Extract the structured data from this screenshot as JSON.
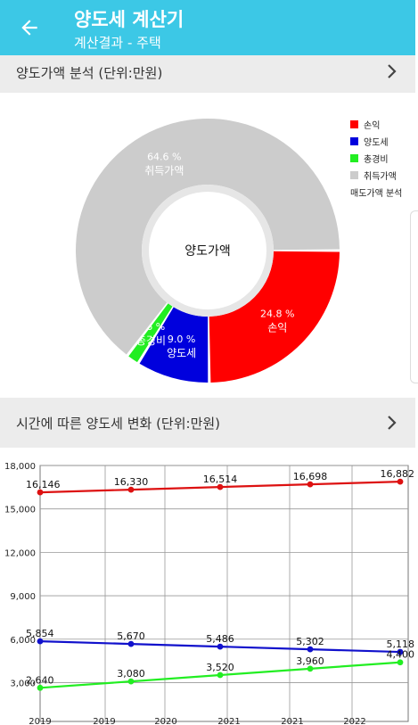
{
  "header": {
    "title": "양도세 계산기",
    "subtitle": "계산결과 - 주택",
    "back_icon": "arrow-left-icon",
    "color": "#3cc8e6"
  },
  "pie_section": {
    "title": "양도가액 분석 (단위:만원)",
    "center_label": "양도가액",
    "description": "매도가액 분석"
  },
  "line_section": {
    "title": "시간에 따른 양도세 변화 (단위:만원)"
  },
  "chart_data": [
    {
      "type": "pie",
      "title": "",
      "center_label": "양도가액",
      "slices": [
        {
          "name": "손익",
          "value": 24.8,
          "pct_label": "24.8 %",
          "color": "#ff0000"
        },
        {
          "name": "양도세",
          "value": 9.0,
          "pct_label": "9.0 %",
          "color": "#0000dd"
        },
        {
          "name": "총경비",
          "value": 1.6,
          "pct_label": "1.6 %",
          "color": "#22ee22"
        },
        {
          "name": "취득가액",
          "value": 64.6,
          "pct_label": "64.6 %",
          "color": "#cccccc"
        }
      ],
      "legend": [
        "손익",
        "양도세",
        "총경비",
        "취득가액"
      ],
      "legend_description": "매도가액 분석",
      "legend_position": "top-right"
    },
    {
      "type": "line",
      "title": "",
      "xlabel": "",
      "ylabel": "",
      "ylim": [
        0,
        18000
      ],
      "yticks": [
        "3,000",
        "6,000",
        "9,000",
        "12,000",
        "15,000",
        "18,000"
      ],
      "x_tick_labels": [
        "2019",
        "2019",
        "2020",
        "2021",
        "2021",
        "2022"
      ],
      "grid": true,
      "series": [
        {
          "color": "#dd1111",
          "values": [
            16146,
            16330,
            16514,
            16698,
            16882
          ],
          "labels": [
            "16,146",
            "16,330",
            "16,514",
            "16,698",
            "16,882"
          ]
        },
        {
          "color": "#1111cc",
          "values": [
            5854,
            5670,
            5486,
            5302,
            5118
          ],
          "labels": [
            "5,854",
            "5,670",
            "5,486",
            "5,302",
            "5,118"
          ]
        },
        {
          "color": "#22ee22",
          "values": [
            2640,
            3080,
            3520,
            3960,
            4400
          ],
          "labels": [
            "2,640",
            "3,080",
            "3,520",
            "3,960",
            "4,400"
          ]
        }
      ]
    }
  ]
}
